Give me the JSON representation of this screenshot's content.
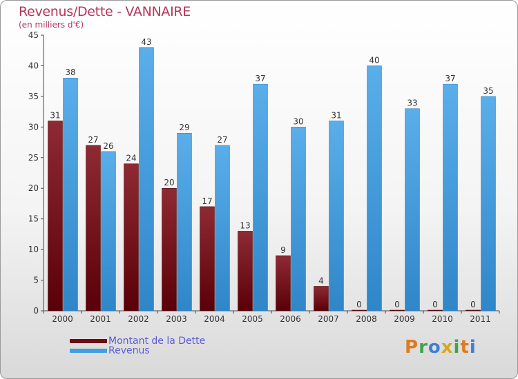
{
  "page": {
    "title": "Revenus/Dette - VANNAIRE",
    "subtitle": "(en milliers d'€)",
    "logo_text": "Proxiti"
  },
  "colors": {
    "dette": "#7a1018",
    "revenus": "#3f9fe0",
    "title": "#b5375c",
    "legend_text": "#5b5bd6"
  },
  "chart_data": {
    "type": "bar",
    "categories": [
      "2000",
      "2001",
      "2002",
      "2003",
      "2004",
      "2005",
      "2006",
      "2007",
      "2008",
      "2009",
      "2010",
      "2011"
    ],
    "series": [
      {
        "name": "Montant de la Dette",
        "values": [
          31,
          27,
          24,
          20,
          17,
          13,
          9,
          4,
          0,
          0,
          0,
          0
        ]
      },
      {
        "name": "Revenus",
        "values": [
          38,
          26,
          43,
          29,
          27,
          37,
          30,
          31,
          40,
          33,
          37,
          35
        ]
      }
    ],
    "ylim": [
      0,
      45
    ],
    "yticks": [
      0,
      5,
      10,
      15,
      20,
      25,
      30,
      35,
      40,
      45
    ],
    "grid": false,
    "legend": "bottom-left"
  }
}
